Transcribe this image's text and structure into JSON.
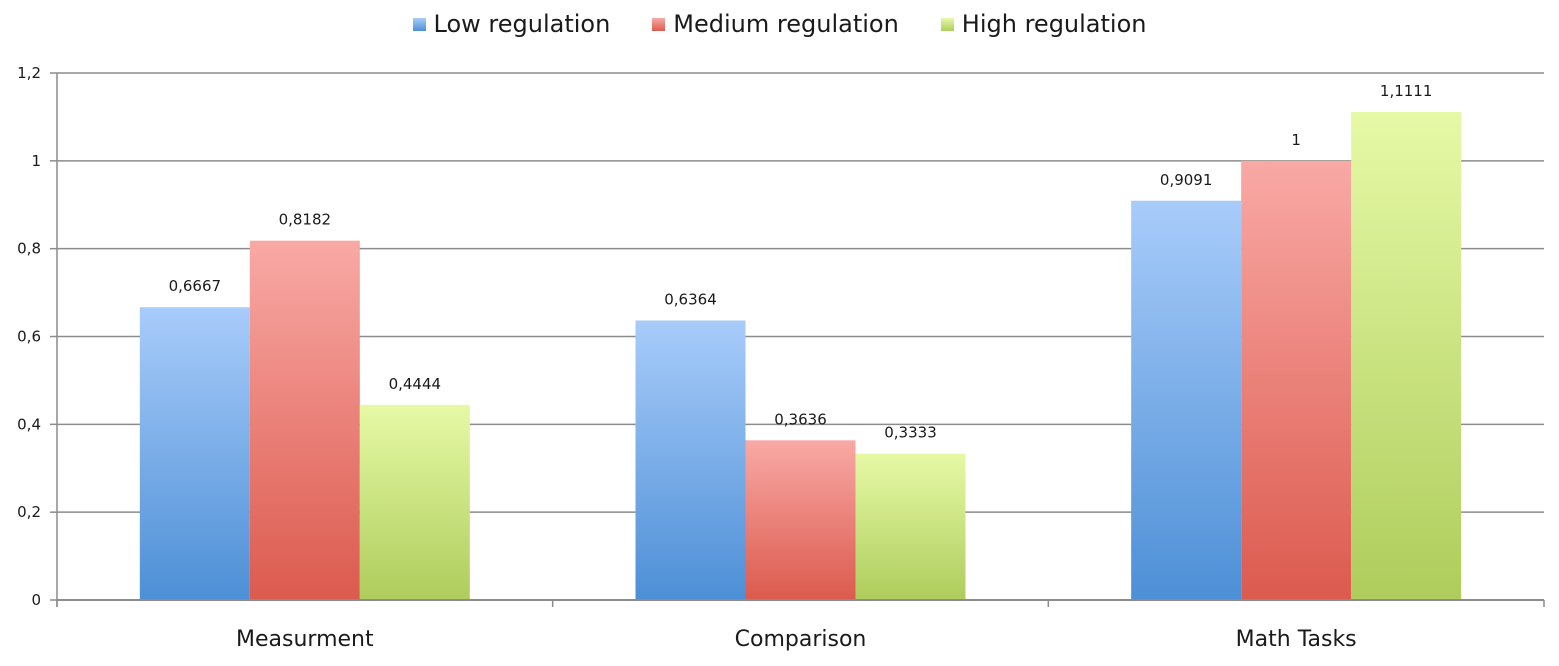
{
  "chart_data": {
    "type": "bar",
    "categories": [
      "Measurment",
      "Comparison",
      "Math Tasks"
    ],
    "series": [
      {
        "name": "Low regulation",
        "values": [
          0.6667,
          0.6364,
          0.9091
        ],
        "labels": [
          "0,6667",
          "0,6364",
          "0,9091"
        ],
        "color": "#6fa3e6"
      },
      {
        "name": "Medium regulation",
        "values": [
          0.8182,
          0.3636,
          1.0
        ],
        "labels": [
          "0,8182",
          "0,3636",
          "1"
        ],
        "color": "#e8716b"
      },
      {
        "name": "High regulation",
        "values": [
          0.4444,
          0.3333,
          1.1111
        ],
        "labels": [
          "0,4444",
          "0,3333",
          "1,1111"
        ],
        "color": "#c9e27e"
      }
    ],
    "ylim": [
      0,
      1.2
    ],
    "yticks": [
      0,
      0.2,
      0.4,
      0.6,
      0.8,
      1.0,
      1.2
    ],
    "ytick_labels": [
      "0",
      "0,2",
      "0,4",
      "0,6",
      "0,8",
      "1",
      "1,2"
    ],
    "grid": true,
    "legend_position": "top-center",
    "title": "",
    "xlabel": "",
    "ylabel": ""
  }
}
